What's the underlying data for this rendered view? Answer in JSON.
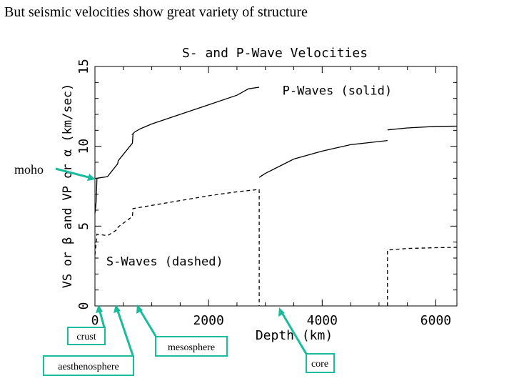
{
  "slide_title": "But seismic velocities show great variety of structure",
  "chart_data": {
    "type": "line",
    "title": "S- and P-Wave Velocities",
    "xlabel": "Depth (km)",
    "ylabel": "VS or β and VP or α (km/sec)",
    "xlim": [
      0,
      6371
    ],
    "ylim": [
      0,
      15
    ],
    "x_ticks": [
      "0",
      "2000",
      "4000",
      "6000"
    ],
    "y_ticks": [
      "0",
      "5",
      "10",
      "15"
    ],
    "x_tick_values": [
      0,
      2000,
      4000,
      6000
    ],
    "y_tick_values": [
      0,
      5,
      10,
      15
    ],
    "grid": false,
    "series": [
      {
        "name": "P-Waves (solid)",
        "style": "solid",
        "segments": [
          [
            [
              0,
              5.8
            ],
            [
              20,
              6.5
            ],
            [
              35,
              8.0
            ],
            [
              220,
              8.1
            ],
            [
              400,
              8.9
            ],
            [
              410,
              9.1
            ],
            [
              660,
              10.2
            ],
            [
              670,
              10.75
            ],
            [
              660,
              10.75
            ],
            [
              700,
              10.9
            ],
            [
              800,
              11.1
            ],
            [
              1000,
              11.4
            ],
            [
              1500,
              12.0
            ],
            [
              2000,
              12.6
            ],
            [
              2500,
              13.2
            ],
            [
              2700,
              13.6
            ],
            [
              2891,
              13.7
            ]
          ],
          [
            [
              2891,
              8.05
            ],
            [
              3000,
              8.3
            ],
            [
              3500,
              9.2
            ],
            [
              4000,
              9.7
            ],
            [
              4500,
              10.1
            ],
            [
              5000,
              10.3
            ],
            [
              5150,
              10.36
            ]
          ],
          [
            [
              5150,
              11.03
            ],
            [
              5500,
              11.15
            ],
            [
              6000,
              11.25
            ],
            [
              6371,
              11.26
            ]
          ]
        ]
      },
      {
        "name": "S-Waves (dashed)",
        "style": "dashed",
        "segments": [
          [
            [
              0,
              3.2
            ],
            [
              20,
              3.9
            ],
            [
              35,
              4.5
            ],
            [
              220,
              4.4
            ],
            [
              400,
              4.8
            ],
            [
              410,
              4.95
            ],
            [
              660,
              5.6
            ],
            [
              670,
              6.1
            ],
            [
              1000,
              6.3
            ],
            [
              1500,
              6.6
            ],
            [
              2000,
              6.9
            ],
            [
              2500,
              7.15
            ],
            [
              2891,
              7.3
            ],
            [
              2891,
              0
            ]
          ],
          [
            [
              5150,
              0
            ],
            [
              5150,
              3.5
            ],
            [
              5500,
              3.6
            ],
            [
              6000,
              3.65
            ],
            [
              6371,
              3.67
            ]
          ]
        ]
      }
    ],
    "annotations": [
      {
        "text": "P-Waves (solid)",
        "x": 3300,
        "y": 13.5
      },
      {
        "text": "S-Waves (dashed)",
        "x": 200,
        "y": 2.8
      }
    ]
  },
  "callouts": {
    "moho": "moho",
    "crust": "crust",
    "aesthenosphere": "aesthenosphere",
    "mesosphere": "mesosphere",
    "core": "core"
  },
  "colors": {
    "callout": "#1abc9c",
    "ink": "#000000"
  }
}
